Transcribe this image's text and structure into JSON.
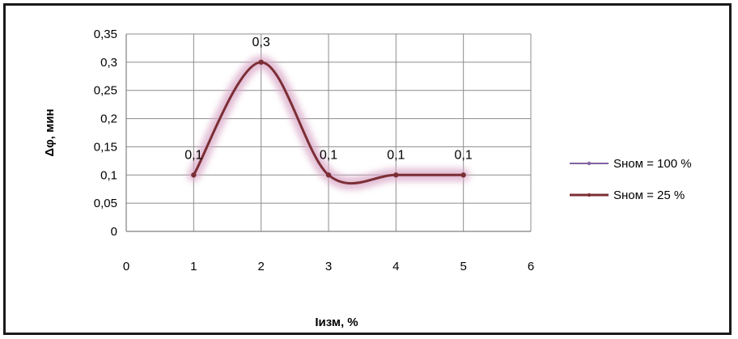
{
  "chart_data": {
    "type": "scatter",
    "xlabel": "Iизм, %",
    "ylabel": "Δφ, мин",
    "xlim": [
      0,
      6
    ],
    "ylim": [
      0,
      0.35
    ],
    "x_ticks": [
      "0",
      "1",
      "2",
      "3",
      "4",
      "5",
      "6"
    ],
    "y_ticks": [
      "0",
      "0,05",
      "0,1",
      "0,15",
      "0,2",
      "0,25",
      "0,3",
      "0,35"
    ],
    "grid": true,
    "legend_position": "right",
    "series": [
      {
        "name": "Sном = 100 %",
        "color": "#8064a2",
        "x": [],
        "y": []
      },
      {
        "name": "Sном = 25 %",
        "color": "#7b2e35",
        "glow": "#d9a7c7",
        "x": [
          1,
          2,
          3,
          4,
          5
        ],
        "y": [
          0.1,
          0.3,
          0.1,
          0.1,
          0.1
        ],
        "data_labels": [
          "0,1",
          "0,3",
          "0,1",
          "0,1",
          "0,1"
        ]
      }
    ]
  }
}
